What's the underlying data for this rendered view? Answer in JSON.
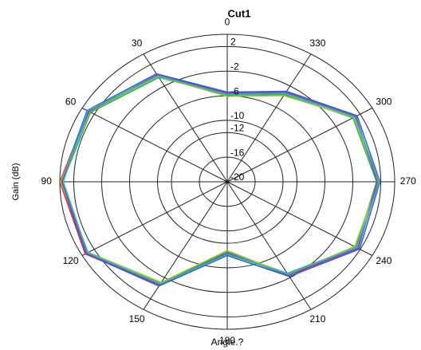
{
  "chart_data": {
    "type": "polar",
    "title": "Cut1",
    "x_label": "Angle.?",
    "y_label": "Gain (dB)",
    "angles": [
      0,
      30,
      60,
      90,
      120,
      150,
      180,
      210,
      240,
      270,
      300,
      330
    ],
    "rlim": [
      -20,
      4
    ],
    "rticks": [
      2,
      -2,
      -6,
      -10,
      -12,
      -16,
      -20
    ],
    "grid": true,
    "series": [
      {
        "color": "#e03030",
        "values": [
          -5.7,
          0,
          3,
          4,
          3.5,
          -0.6,
          -8.3,
          -2.5,
          1.6,
          1.7,
          1.2,
          -3.3
        ]
      },
      {
        "color": "#30b040",
        "values": [
          -5.9,
          -0.4,
          2.6,
          3.6,
          3.2,
          -0.9,
          -8.6,
          -2.8,
          1.3,
          1.4,
          0.8,
          -3.6
        ]
      },
      {
        "color": "#3060d0",
        "values": [
          -5.4,
          0.3,
          3.2,
          3.8,
          3.4,
          -0.4,
          -8.0,
          -2.2,
          1.9,
          1.9,
          1.5,
          -3.0
        ]
      },
      {
        "color": "#a0c030",
        "values": [
          -6.1,
          -0.2,
          2.8,
          3.9,
          3.0,
          -1.1,
          -8.8,
          -2.6,
          1.1,
          1.6,
          1.0,
          -3.8
        ]
      },
      {
        "color": "#9040c0",
        "values": [
          -5.6,
          0.1,
          2.9,
          3.7,
          3.3,
          -0.7,
          -8.4,
          -2.4,
          1.7,
          1.5,
          1.3,
          -3.2
        ]
      },
      {
        "color": "#20c0c0",
        "values": [
          -5.8,
          -0.1,
          3.1,
          3.5,
          3.1,
          -0.8,
          -8.2,
          -2.7,
          1.4,
          1.8,
          1.1,
          -3.4
        ]
      }
    ]
  }
}
